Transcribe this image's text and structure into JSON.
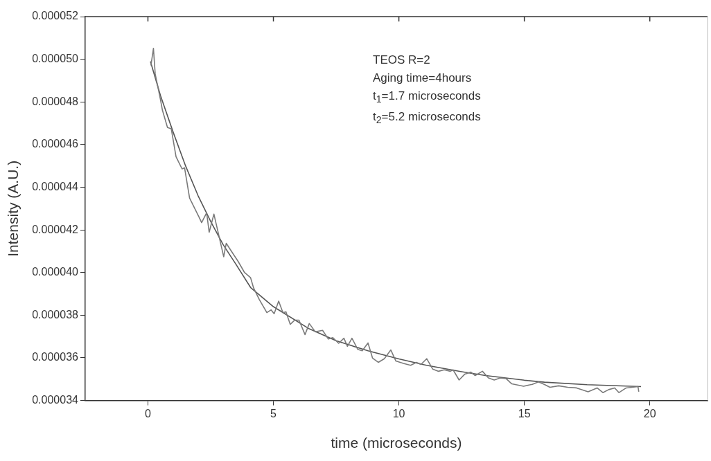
{
  "chart_data": {
    "type": "line",
    "xlabel": "time (microseconds)",
    "ylabel": "Intensity (A.U.)",
    "annotations": [
      "TEOS R=2",
      "Aging time=4hours",
      "t$_{1}$=1.7 microseconds",
      "t$_{2}$=5.2 microseconds"
    ],
    "xlim": [
      -2.5,
      22.3
    ],
    "xticks": [
      0,
      5,
      10,
      15,
      20
    ],
    "ylim": [
      3.4e-05,
      5.2e-05
    ],
    "yticks": [
      {
        "value": 3.4e-05,
        "label": "0.000034"
      },
      {
        "value": 3.6e-05,
        "label": "0.000036"
      },
      {
        "value": 3.8e-05,
        "label": "0.000038"
      },
      {
        "value": 4e-05,
        "label": "0.000040"
      },
      {
        "value": 4.2e-05,
        "label": "0.000042"
      },
      {
        "value": 4.4e-05,
        "label": "0.000044"
      },
      {
        "value": 4.6e-05,
        "label": "0.000046"
      },
      {
        "value": 4.8e-05,
        "label": "0.000048"
      },
      {
        "value": 5e-05,
        "label": "0.000050"
      },
      {
        "value": 5.2e-05,
        "label": "0.000052"
      }
    ],
    "grid": false,
    "legend": false,
    "marker": "none",
    "line_style": "solid",
    "series": [
      {
        "color": "#7a7a7a",
        "x": [
          0.12,
          0.22,
          0.29,
          0.49,
          0.58,
          0.78,
          0.93,
          1.12,
          1.36,
          1.46,
          1.66,
          2.05,
          2.14,
          2.34,
          2.44,
          2.63,
          3.02,
          3.12,
          3.31,
          3.6,
          3.85,
          4.09,
          4.21,
          4.44,
          4.74,
          4.91,
          5.03,
          5.21,
          5.38,
          5.5,
          5.67,
          5.85,
          6.02,
          6.26,
          6.43,
          6.67,
          6.96,
          7.19,
          7.37,
          7.6,
          7.81,
          7.95,
          8.13,
          8.36,
          8.54,
          8.77,
          8.95,
          9.18,
          9.42,
          9.68,
          9.88,
          10.18,
          10.47,
          10.7,
          10.88,
          11.11,
          11.35,
          11.58,
          11.81,
          12.05,
          12.16,
          12.4,
          12.63,
          12.87,
          13.04,
          13.33,
          13.57,
          13.8,
          14.04,
          14.27,
          14.5,
          14.97,
          15.32,
          15.56,
          15.79,
          16.02,
          16.37,
          16.73,
          17.08,
          17.54,
          17.9,
          18.13,
          18.36,
          18.6,
          18.77,
          19.06,
          19.53,
          19.56
        ],
        "values": [
          4.971e-05,
          5.051e-05,
          4.931e-05,
          4.817e-05,
          4.76e-05,
          4.68e-05,
          4.674e-05,
          4.543e-05,
          4.486e-05,
          4.491e-05,
          4.349e-05,
          4.257e-05,
          4.234e-05,
          4.28e-05,
          4.189e-05,
          4.274e-05,
          4.074e-05,
          4.137e-05,
          4.103e-05,
          4.051e-05,
          4e-05,
          3.976e-05,
          3.928e-05,
          3.873e-05,
          3.812e-05,
          3.825e-05,
          3.807e-05,
          3.866e-05,
          3.812e-05,
          3.816e-05,
          3.757e-05,
          3.777e-05,
          3.777e-05,
          3.709e-05,
          3.761e-05,
          3.722e-05,
          3.729e-05,
          3.688e-05,
          3.695e-05,
          3.668e-05,
          3.692e-05,
          3.654e-05,
          3.692e-05,
          3.64e-05,
          3.633e-05,
          3.67e-05,
          3.599e-05,
          3.579e-05,
          3.596e-05,
          3.637e-05,
          3.585e-05,
          3.574e-05,
          3.565e-05,
          3.579e-05,
          3.569e-05,
          3.596e-05,
          3.547e-05,
          3.537e-05,
          3.544e-05,
          3.537e-05,
          3.544e-05,
          3.496e-05,
          3.524e-05,
          3.533e-05,
          3.517e-05,
          3.537e-05,
          3.506e-05,
          3.496e-05,
          3.506e-05,
          3.503e-05,
          3.478e-05,
          3.467e-05,
          3.476e-05,
          3.487e-05,
          3.476e-05,
          3.462e-05,
          3.469e-05,
          3.462e-05,
          3.459e-05,
          3.441e-05,
          3.459e-05,
          3.437e-05,
          3.451e-05,
          3.459e-05,
          3.437e-05,
          3.459e-05,
          3.465e-05,
          3.441e-05
        ]
      },
      {
        "color": "#555555",
        "x": [
          0.1,
          0.5,
          1,
          1.5,
          2,
          2.5,
          3,
          3.5,
          4.09,
          5,
          6.43,
          7.5,
          8.77,
          10,
          11.1,
          12.5,
          13.45,
          15,
          15.8,
          17.5,
          19.65
        ],
        "values": [
          4.99e-05,
          4.83e-05,
          4.66e-05,
          4.5e-05,
          4.36e-05,
          4.24e-05,
          4.13e-05,
          4.04e-05,
          3.93e-05,
          3.84e-05,
          3.736e-05,
          3.68e-05,
          3.633e-05,
          3.595e-05,
          3.565e-05,
          3.535e-05,
          3.517e-05,
          3.495e-05,
          3.486e-05,
          3.474e-05,
          3.465e-05
        ]
      }
    ]
  }
}
